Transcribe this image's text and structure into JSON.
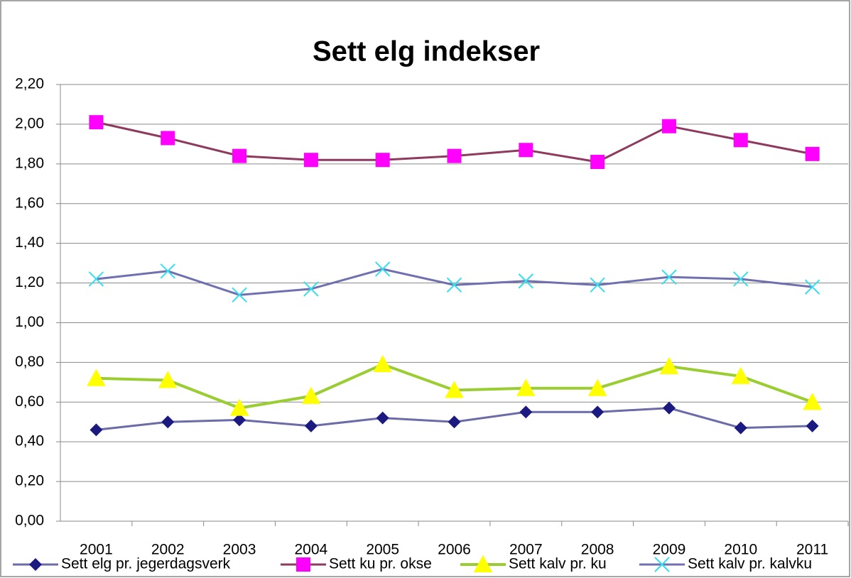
{
  "chart_data": {
    "type": "line",
    "title": "Sett elg indekser",
    "categories": [
      "2001",
      "2002",
      "2003",
      "2004",
      "2005",
      "2006",
      "2007",
      "2008",
      "2009",
      "2010",
      "2011"
    ],
    "ylim": [
      0,
      2.2
    ],
    "yticks": [
      {
        "value": 0,
        "label": "0,00"
      },
      {
        "value": 0.2,
        "label": "0,20"
      },
      {
        "value": 0.4,
        "label": "0,40"
      },
      {
        "value": 0.6,
        "label": "0,60"
      },
      {
        "value": 0.8,
        "label": "0,80"
      },
      {
        "value": 1,
        "label": "1,00"
      },
      {
        "value": 1.2,
        "label": "1,20"
      },
      {
        "value": 1.4,
        "label": "1,40"
      },
      {
        "value": 1.6,
        "label": "1,60"
      },
      {
        "value": 1.8,
        "label": "1,80"
      },
      {
        "value": 2,
        "label": "2,00"
      },
      {
        "value": 2.2,
        "label": "2,20"
      }
    ],
    "grid": true,
    "legend": "bottom",
    "series": [
      {
        "name": "Sett elg pr. jegerdagsverk",
        "color": "#6b6ba8",
        "marker_color": "#1a1a80",
        "marker": "diamond",
        "values": [
          0.46,
          0.5,
          0.51,
          0.48,
          0.52,
          0.5,
          0.55,
          0.55,
          0.57,
          0.47,
          0.48
        ]
      },
      {
        "name": "Sett ku pr. okse",
        "color": "#8e3a5e",
        "marker_color": "#ff00ff",
        "marker": "square",
        "values": [
          2.01,
          1.93,
          1.84,
          1.82,
          1.82,
          1.84,
          1.87,
          1.81,
          1.99,
          1.92,
          1.85
        ]
      },
      {
        "name": "Sett kalv pr. ku",
        "color": "#9acd32",
        "marker_color": "#ffff00",
        "marker": "triangle",
        "values": [
          0.72,
          0.71,
          0.57,
          0.63,
          0.79,
          0.66,
          0.67,
          0.67,
          0.78,
          0.73,
          0.6
        ]
      },
      {
        "name": "Sett kalv pr. kalvku",
        "color": "#7070b0",
        "marker_color": "#33e0f0",
        "marker": "x",
        "values": [
          1.22,
          1.26,
          1.14,
          1.17,
          1.27,
          1.19,
          1.21,
          1.19,
          1.23,
          1.22,
          1.18
        ]
      }
    ]
  }
}
